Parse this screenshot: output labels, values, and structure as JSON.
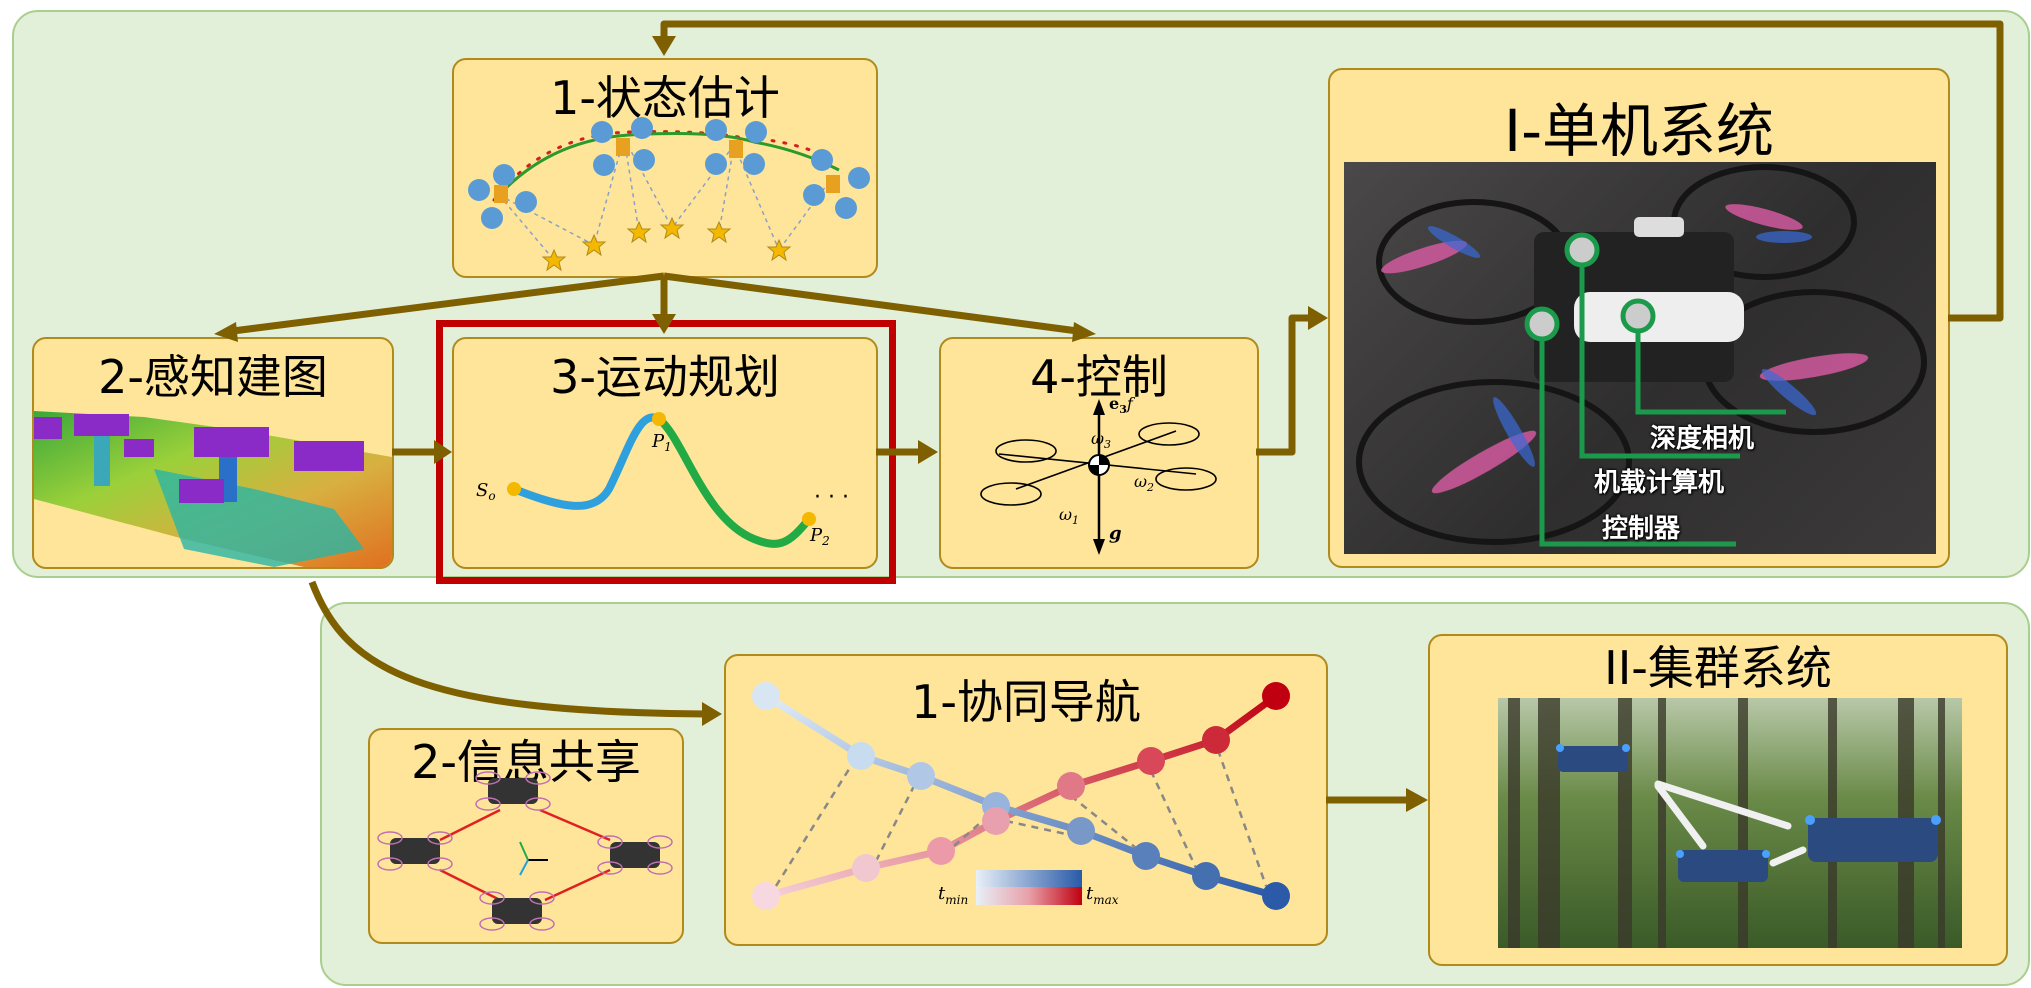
{
  "top_system": {
    "state_estimation": {
      "title": "1-状态估计"
    },
    "perception_mapping": {
      "title": "2-感知建图"
    },
    "motion_planning": {
      "title": "3-运动规划",
      "start_label": "S",
      "start_sub": "o",
      "p1_label": "P",
      "p1_sub": "1",
      "p2_label": "P",
      "p2_sub": "2",
      "ellipsis": "· · ·"
    },
    "control": {
      "title": "4-控制",
      "thrust_label": "e",
      "thrust_sub": "3",
      "thrust_f": "f",
      "gravity_label": "g",
      "w1": "ω",
      "w1_sub": "1",
      "w2": "ω",
      "w2_sub": "2",
      "w3": "ω",
      "w3_sub": "3"
    },
    "single_system": {
      "title": "I-单机系统",
      "labels": [
        "深度相机",
        "机载计算机",
        "控制器"
      ]
    }
  },
  "swarm": {
    "info_sharing": {
      "title": "2-信息共享"
    },
    "cooperative_nav": {
      "title": "1-协同导航",
      "t_min": "t",
      "t_min_sub": "min",
      "t_max": "t",
      "t_max_sub": "max"
    },
    "swarm_system": {
      "title": "II-集群系统"
    }
  },
  "colors": {
    "arrow": "#7f6000",
    "highlight": "#c00000",
    "panel": "#e2efd9",
    "box": "#ffe599"
  }
}
